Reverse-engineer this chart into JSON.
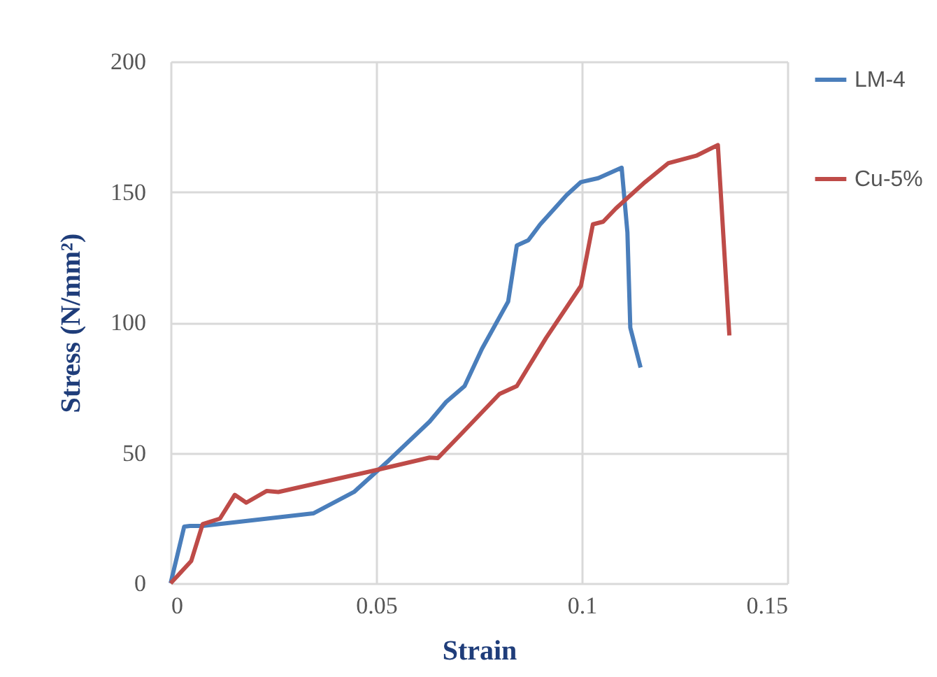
{
  "chart_data": {
    "type": "line",
    "xlabel": "Strain",
    "ylabel": "Stress (N/mm²)",
    "xlim": [
      0,
      0.15
    ],
    "xticks": [
      0,
      0.05,
      0.1,
      0.15
    ],
    "ylim": [
      0,
      200
    ],
    "yticks": [
      0,
      50,
      100,
      150,
      200
    ],
    "grid": true,
    "legend": "right",
    "marker": "none",
    "line_style": "solid",
    "series": [
      {
        "name": "LM-4",
        "color": "#4a7ebb",
        "x": [
          0,
          0.0033,
          0.0047,
          0.0078,
          0.0347,
          0.0446,
          0.053,
          0.063,
          0.067,
          0.0715,
          0.0757,
          0.0821,
          0.0842,
          0.087,
          0.0899,
          0.0934,
          0.0963,
          0.0998,
          0.104,
          0.1097,
          0.1111,
          0.1118,
          0.1143
        ],
        "values": [
          0,
          21.7,
          22,
          22,
          26.8,
          35,
          47,
          62,
          69.5,
          75.6,
          89.8,
          108,
          129.5,
          131.5,
          137.6,
          143.7,
          148.8,
          153.8,
          155.3,
          159.3,
          134.5,
          98,
          82.7
        ]
      },
      {
        "name": "Cu-5%",
        "color": "#be4b48",
        "x": [
          0,
          0.005,
          0.0078,
          0.012,
          0.0156,
          0.0184,
          0.0234,
          0.0262,
          0.0347,
          0.0503,
          0.063,
          0.065,
          0.0701,
          0.08,
          0.0842,
          0.0913,
          0.0998,
          0.1027,
          0.1052,
          0.1083,
          0.1154,
          0.121,
          0.128,
          0.1331,
          0.1359
        ],
        "values": [
          0,
          8.5,
          22.7,
          24.8,
          33.9,
          30.9,
          35.4,
          35,
          38,
          43.5,
          48.2,
          48,
          56.3,
          72.6,
          75.6,
          94,
          114,
          137.6,
          138.6,
          143.7,
          153.8,
          161,
          164,
          168,
          95
        ]
      }
    ]
  }
}
